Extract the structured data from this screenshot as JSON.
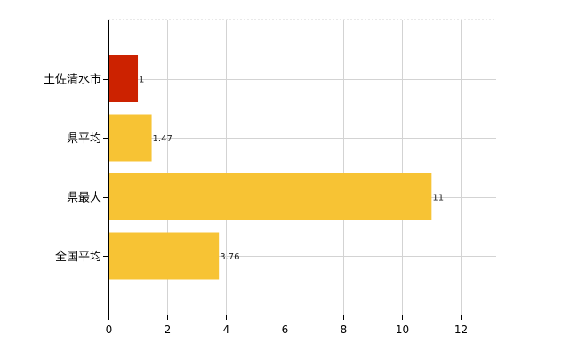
{
  "chart_data": {
    "type": "bar",
    "orientation": "horizontal",
    "title": "",
    "xlabel": "",
    "ylabel": "",
    "categories": [
      "土佐清水市",
      "県平均",
      "県最大",
      "全国平均"
    ],
    "values": [
      1,
      1.47,
      11,
      3.76
    ],
    "value_labels": [
      "1",
      "1.47",
      "11",
      "3.76"
    ],
    "bar_colors": [
      "#cc2200",
      "#f7c334",
      "#f7c334",
      "#f7c334"
    ],
    "xlim": [
      0,
      13.2
    ],
    "xticks": [
      0,
      2,
      4,
      6,
      8,
      10,
      12
    ],
    "xtick_labels": [
      "0",
      "2",
      "4",
      "6",
      "8",
      "10",
      "12"
    ],
    "grid": true,
    "legend": "none"
  }
}
